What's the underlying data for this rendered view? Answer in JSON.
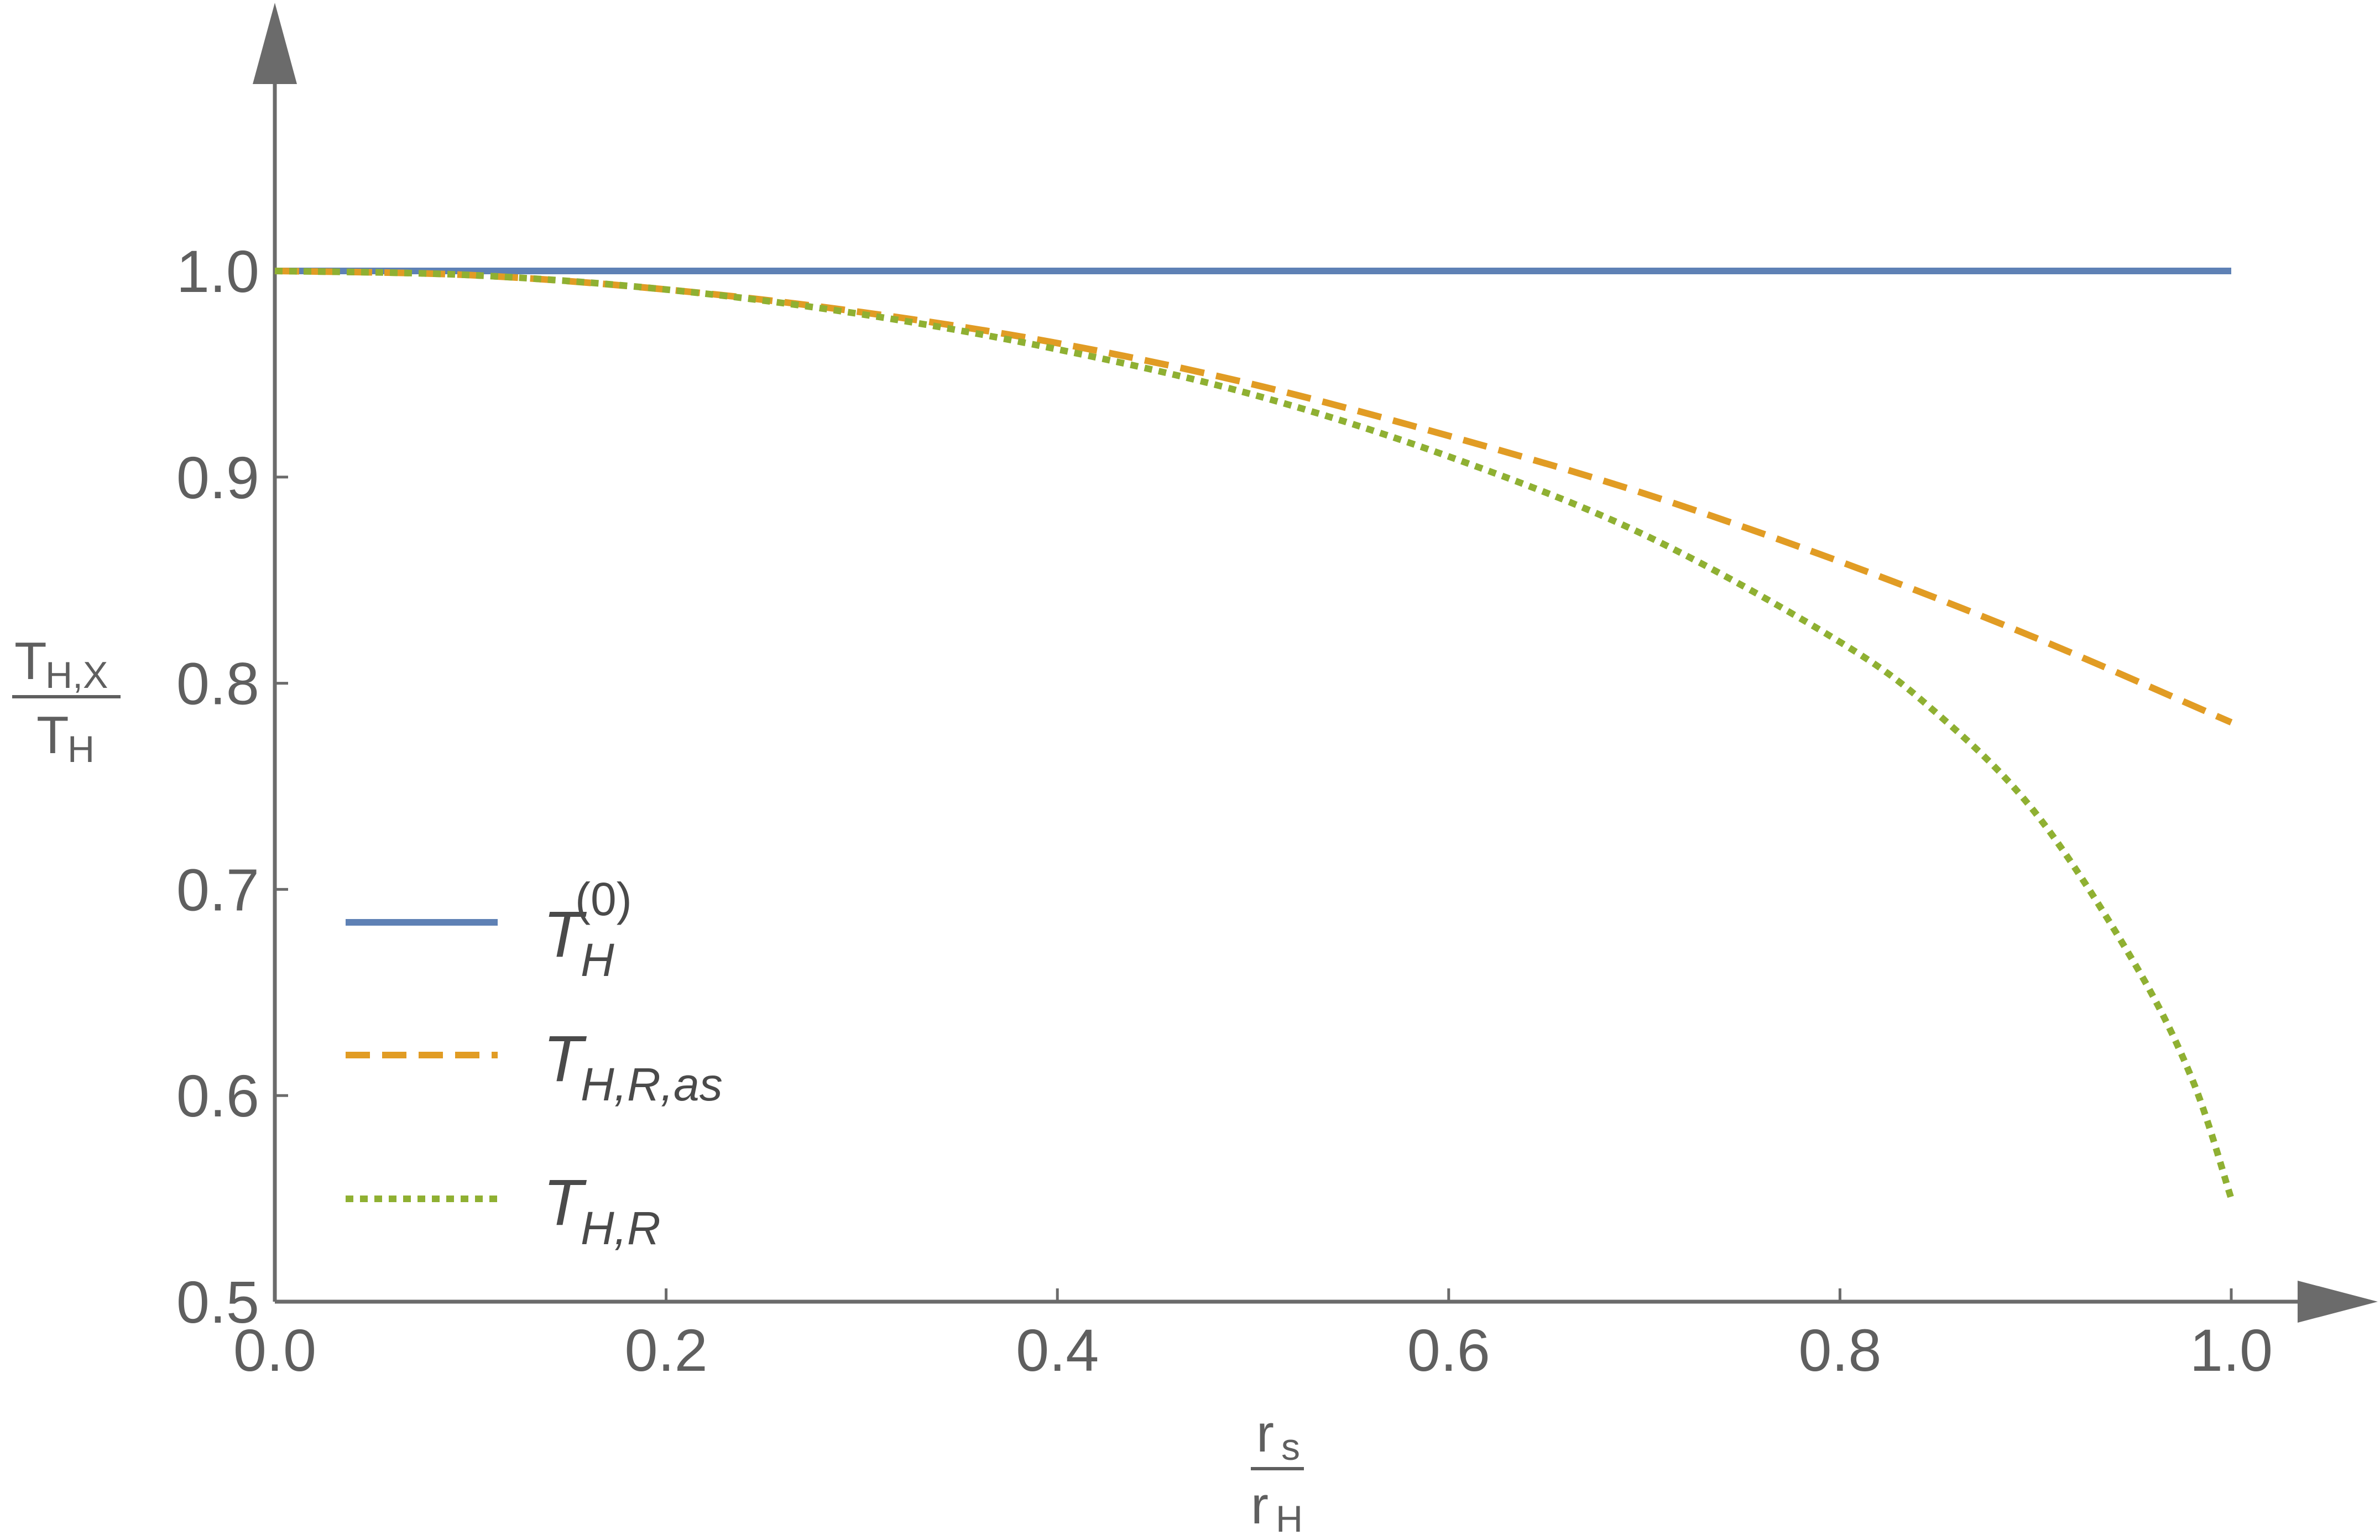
{
  "chart_data": {
    "type": "line",
    "title": "",
    "xlabel": {
      "num_base": "r",
      "num_sub": "s",
      "den_base": "r",
      "den_sub": "H"
    },
    "ylabel": {
      "num_base": "T",
      "num_sub": "H,X",
      "den_base": "T",
      "den_sub": "H"
    },
    "xlim": [
      0,
      1.0
    ],
    "ylim": [
      0.5,
      1.0
    ],
    "x_ticks": [
      "0.0",
      "0.2",
      "0.4",
      "0.6",
      "0.8",
      "1.0"
    ],
    "y_ticks": [
      "0.5",
      "0.6",
      "0.7",
      "0.8",
      "0.9",
      "1.0"
    ],
    "grid": false,
    "legend_position": "bottom-left",
    "series": [
      {
        "id": "t0",
        "legend": {
          "base": "T",
          "sub": "H",
          "sup": "(0)"
        },
        "color": "#5E81B5",
        "style": "solid",
        "x": [
          0.0,
          0.1,
          0.2,
          0.3,
          0.4,
          0.5,
          0.6,
          0.7,
          0.8,
          0.9,
          1.0
        ],
        "y": [
          1.0,
          1.0,
          1.0,
          1.0,
          1.0,
          1.0,
          1.0,
          1.0,
          1.0,
          1.0,
          1.0
        ]
      },
      {
        "id": "tras",
        "legend": {
          "base": "T",
          "sub": "H,R,as",
          "sup": ""
        },
        "color": "#E19C24",
        "style": "dashed",
        "x": [
          0.0,
          0.1,
          0.2,
          0.3,
          0.4,
          0.5,
          0.6,
          0.7,
          0.8,
          0.9,
          1.0
        ],
        "y": [
          1.0,
          0.998,
          0.991,
          0.98,
          0.965,
          0.945,
          0.92,
          0.892,
          0.859,
          0.822,
          0.781
        ]
      },
      {
        "id": "tr",
        "legend": {
          "base": "T",
          "sub": "H,R",
          "sup": ""
        },
        "color": "#8FB032",
        "style": "dotted",
        "x": [
          0.0,
          0.1,
          0.2,
          0.3,
          0.4,
          0.5,
          0.6,
          0.7,
          0.8,
          0.85,
          0.9,
          0.95,
          0.98,
          1.0
        ],
        "y": [
          1.0,
          0.998,
          0.991,
          0.979,
          0.962,
          0.94,
          0.91,
          0.872,
          0.82,
          0.785,
          0.737,
          0.665,
          0.608,
          0.55
        ]
      }
    ]
  }
}
